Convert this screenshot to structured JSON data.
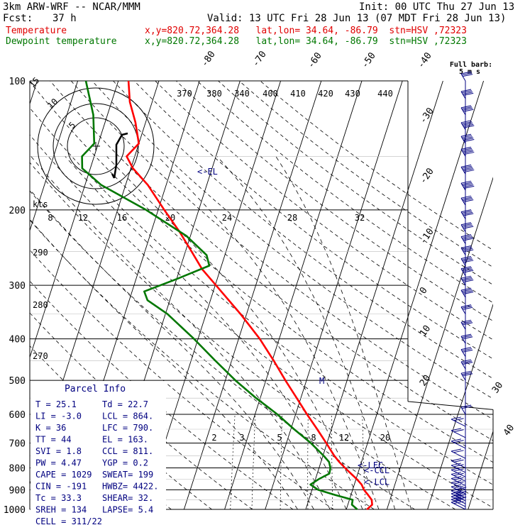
{
  "header": {
    "model": "3km ARW-WRF -- NCAR/MMM",
    "init": "Init: 00 UTC Thu 27 Jun 13",
    "fcst_label": "Fcst:",
    "fcst_value": "37 h",
    "valid": "Valid: 13 UTC Fri 28 Jun 13 (07 MDT Fri 28 Jun 13)",
    "temp_label": "Temperature",
    "dew_label": "Dewpoint temperature",
    "location_line": "x,y=820.72,364.28   lat,lon= 34.64, -86.79  stn=HSV ,72323"
  },
  "colors": {
    "temperature": "#ff0000",
    "dewpoint": "#007700",
    "wind": "#000080",
    "text": "#000000"
  },
  "chart_data": {
    "type": "line",
    "title": "",
    "ylabel": "",
    "xlabel": "",
    "pressure_levels": [
      100,
      200,
      300,
      400,
      500,
      600,
      700,
      800,
      900,
      1000
    ],
    "ylim": [
      1000,
      100
    ],
    "isotherm_labels": [
      -80,
      -70,
      -60,
      -50,
      -40,
      -30,
      -20,
      -10,
      0,
      10,
      20,
      30,
      40
    ],
    "theta_labels": [
      370,
      380,
      340,
      400,
      410,
      420,
      430,
      440
    ],
    "theta_left_labels": [
      290,
      280,
      270
    ],
    "mixing_ratio_upper_labels": [
      8,
      12,
      16,
      20,
      24,
      28,
      32
    ],
    "mixing_ratio_lower_labels": [
      2,
      3,
      5,
      8,
      12,
      20
    ],
    "annotations": {
      "el": "<-EL",
      "lfc": "<-LFC",
      "ccl": "<-CCL",
      "lcl": "<-LCL",
      "motion": "M"
    },
    "series": [
      {
        "name": "Temperature",
        "points": [
          {
            "p": 1000,
            "t": 25.1
          },
          {
            "p": 975,
            "t": 26.0
          },
          {
            "p": 950,
            "t": 25.5
          },
          {
            "p": 925,
            "t": 24.2
          },
          {
            "p": 900,
            "t": 22.8
          },
          {
            "p": 875,
            "t": 21.8
          },
          {
            "p": 850,
            "t": 20.2
          },
          {
            "p": 825,
            "t": 18.3
          },
          {
            "p": 800,
            "t": 16.4
          },
          {
            "p": 775,
            "t": 14.5
          },
          {
            "p": 750,
            "t": 12.8
          },
          {
            "p": 700,
            "t": 9.8
          },
          {
            "p": 650,
            "t": 6.5
          },
          {
            "p": 600,
            "t": 2.8
          },
          {
            "p": 550,
            "t": -1.0
          },
          {
            "p": 500,
            "t": -5.2
          },
          {
            "p": 450,
            "t": -9.6
          },
          {
            "p": 400,
            "t": -14.8
          },
          {
            "p": 350,
            "t": -21.5
          },
          {
            "p": 300,
            "t": -29.8
          },
          {
            "p": 275,
            "t": -34.5
          },
          {
            "p": 250,
            "t": -38.5
          },
          {
            "p": 225,
            "t": -43.0
          },
          {
            "p": 200,
            "t": -48.5
          },
          {
            "p": 175,
            "t": -54.5
          },
          {
            "p": 160,
            "t": -59.5
          },
          {
            "p": 150,
            "t": -62.0
          },
          {
            "p": 140,
            "t": -60.0
          },
          {
            "p": 125,
            "t": -62.5
          },
          {
            "p": 112,
            "t": -65.5
          },
          {
            "p": 100,
            "t": -67.5
          }
        ]
      },
      {
        "name": "Dewpoint temperature",
        "points": [
          {
            "p": 1000,
            "t": 22.7
          },
          {
            "p": 975,
            "t": 21.0
          },
          {
            "p": 950,
            "t": 20.8
          },
          {
            "p": 925,
            "t": 16.0
          },
          {
            "p": 900,
            "t": 11.5
          },
          {
            "p": 875,
            "t": 9.2
          },
          {
            "p": 850,
            "t": 10.8
          },
          {
            "p": 825,
            "t": 13.0
          },
          {
            "p": 800,
            "t": 12.8
          },
          {
            "p": 775,
            "t": 12.0
          },
          {
            "p": 750,
            "t": 10.2
          },
          {
            "p": 700,
            "t": 6.0
          },
          {
            "p": 650,
            "t": 0.8
          },
          {
            "p": 600,
            "t": -4.5
          },
          {
            "p": 550,
            "t": -11.0
          },
          {
            "p": 500,
            "t": -17.5
          },
          {
            "p": 450,
            "t": -24.0
          },
          {
            "p": 400,
            "t": -31.0
          },
          {
            "p": 350,
            "t": -39.5
          },
          {
            "p": 325,
            "t": -45.5
          },
          {
            "p": 310,
            "t": -47.0
          },
          {
            "p": 290,
            "t": -40.0
          },
          {
            "p": 270,
            "t": -33.0
          },
          {
            "p": 255,
            "t": -34.5
          },
          {
            "p": 230,
            "t": -41.0
          },
          {
            "p": 200,
            "t": -53.0
          },
          {
            "p": 175,
            "t": -66.0
          },
          {
            "p": 160,
            "t": -72.0
          },
          {
            "p": 150,
            "t": -73.0
          },
          {
            "p": 140,
            "t": -71.0
          },
          {
            "p": 120,
            "t": -73.5
          },
          {
            "p": 100,
            "t": -78.0
          }
        ]
      }
    ]
  },
  "hodograph": {
    "units_label": "kts",
    "ring_labels": [
      "5",
      "10",
      "15"
    ],
    "points": [
      [
        0,
        0
      ],
      [
        6,
        -8
      ],
      [
        8,
        -26
      ],
      [
        8,
        -50
      ],
      [
        10,
        -70
      ],
      [
        24,
        -74
      ],
      [
        44,
        -68
      ]
    ]
  },
  "wind_barbs": {
    "label_line1": "Full barb:",
    "label_line2": "5 m s",
    "levels": [
      {
        "p": 1000,
        "spd": 10,
        "dir": 200
      },
      {
        "p": 985,
        "spd": 14,
        "dir": 215
      },
      {
        "p": 970,
        "spd": 16,
        "dir": 225
      },
      {
        "p": 955,
        "spd": 17,
        "dir": 230
      },
      {
        "p": 940,
        "spd": 16,
        "dir": 235
      },
      {
        "p": 920,
        "spd": 15,
        "dir": 240
      },
      {
        "p": 900,
        "spd": 14,
        "dir": 245
      },
      {
        "p": 880,
        "spd": 13,
        "dir": 250
      },
      {
        "p": 860,
        "spd": 12,
        "dir": 255
      },
      {
        "p": 840,
        "spd": 11,
        "dir": 260
      },
      {
        "p": 820,
        "spd": 12,
        "dir": 262
      },
      {
        "p": 800,
        "spd": 13,
        "dir": 265
      },
      {
        "p": 760,
        "spd": 12,
        "dir": 268
      },
      {
        "p": 720,
        "spd": 12,
        "dir": 270
      },
      {
        "p": 680,
        "spd": 13,
        "dir": 272
      },
      {
        "p": 640,
        "spd": 14,
        "dir": 275
      },
      {
        "p": 600,
        "spd": 14,
        "dir": 278
      },
      {
        "p": 500,
        "spd": 15,
        "dir": 280
      },
      {
        "p": 470,
        "spd": 16,
        "dir": 282
      },
      {
        "p": 440,
        "spd": 17,
        "dir": 285
      },
      {
        "p": 410,
        "spd": 18,
        "dir": 287
      },
      {
        "p": 380,
        "spd": 18,
        "dir": 290
      },
      {
        "p": 350,
        "spd": 19,
        "dir": 290
      },
      {
        "p": 320,
        "spd": 20,
        "dir": 292
      },
      {
        "p": 300,
        "spd": 20,
        "dir": 293
      },
      {
        "p": 285,
        "spd": 21,
        "dir": 295
      },
      {
        "p": 270,
        "spd": 21,
        "dir": 296
      },
      {
        "p": 255,
        "spd": 22,
        "dir": 297
      },
      {
        "p": 240,
        "spd": 22,
        "dir": 298
      },
      {
        "p": 225,
        "spd": 23,
        "dir": 300
      },
      {
        "p": 210,
        "spd": 23,
        "dir": 300
      },
      {
        "p": 195,
        "spd": 24,
        "dir": 302
      },
      {
        "p": 180,
        "spd": 25,
        "dir": 303
      },
      {
        "p": 165,
        "spd": 26,
        "dir": 305
      },
      {
        "p": 150,
        "spd": 27,
        "dir": 305
      },
      {
        "p": 140,
        "spd": 28,
        "dir": 306
      },
      {
        "p": 130,
        "spd": 25,
        "dir": 304
      },
      {
        "p": 120,
        "spd": 22,
        "dir": 300
      },
      {
        "p": 110,
        "spd": 20,
        "dir": 298
      },
      {
        "p": 100,
        "spd": 18,
        "dir": 296
      }
    ]
  },
  "parcel_info": {
    "title": "Parcel Info",
    "rows": [
      [
        "T  =    25.1",
        "Td =   22.7"
      ],
      [
        "LI =    -3.0",
        "LCL =  864."
      ],
      [
        "K  =      36",
        "LFC =  790."
      ],
      [
        "TT =      44",
        "EL  =  163."
      ],
      [
        "SVI =    1.8",
        "CCL =  811."
      ],
      [
        "PW =    4.47",
        "YGP =   0.2"
      ],
      [
        "CAPE =  1029",
        "SWEAT=  199"
      ],
      [
        "CIN =   -191",
        "HWBZ= 4422."
      ],
      [
        "Tc =    33.3",
        "SHEAR=  32."
      ],
      [
        "SREH =   134",
        "LAPSE=  5.4"
      ],
      [
        "CELL = 311/22",
        ""
      ]
    ]
  }
}
